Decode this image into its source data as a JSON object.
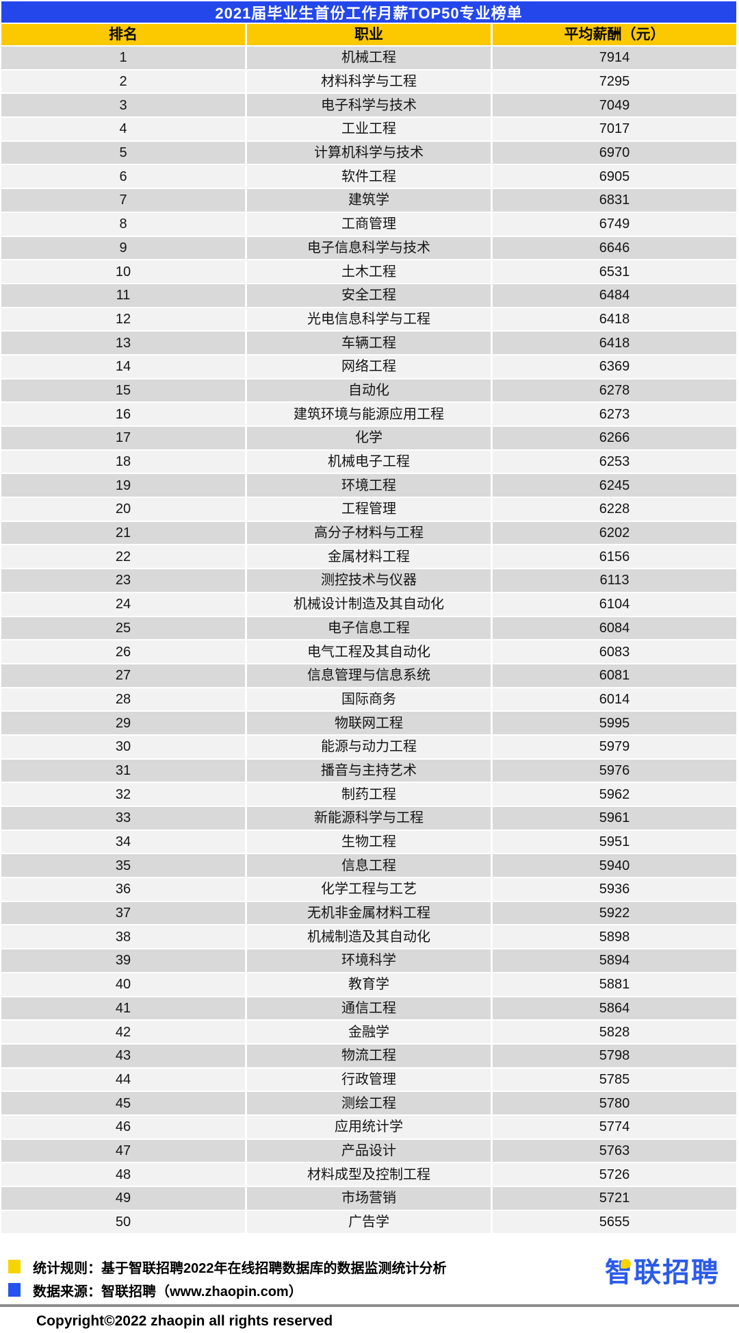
{
  "header": {
    "title": "2021届毕业生首份工作月薪TOP50专业榜单"
  },
  "chart_data": {
    "type": "table",
    "title": "2021届毕业生首份工作月薪TOP50专业榜单",
    "columns": [
      "排名",
      "职业",
      "平均薪酬（元）"
    ],
    "rows": [
      [
        1,
        "机械工程",
        7914
      ],
      [
        2,
        "材料科学与工程",
        7295
      ],
      [
        3,
        "电子科学与技术",
        7049
      ],
      [
        4,
        "工业工程",
        7017
      ],
      [
        5,
        "计算机科学与技术",
        6970
      ],
      [
        6,
        "软件工程",
        6905
      ],
      [
        7,
        "建筑学",
        6831
      ],
      [
        8,
        "工商管理",
        6749
      ],
      [
        9,
        "电子信息科学与技术",
        6646
      ],
      [
        10,
        "土木工程",
        6531
      ],
      [
        11,
        "安全工程",
        6484
      ],
      [
        12,
        "光电信息科学与工程",
        6418
      ],
      [
        13,
        "车辆工程",
        6418
      ],
      [
        14,
        "网络工程",
        6369
      ],
      [
        15,
        "自动化",
        6278
      ],
      [
        16,
        "建筑环境与能源应用工程",
        6273
      ],
      [
        17,
        "化学",
        6266
      ],
      [
        18,
        "机械电子工程",
        6253
      ],
      [
        19,
        "环境工程",
        6245
      ],
      [
        20,
        "工程管理",
        6228
      ],
      [
        21,
        "高分子材料与工程",
        6202
      ],
      [
        22,
        "金属材料工程",
        6156
      ],
      [
        23,
        "测控技术与仪器",
        6113
      ],
      [
        24,
        "机械设计制造及其自动化",
        6104
      ],
      [
        25,
        "电子信息工程",
        6084
      ],
      [
        26,
        "电气工程及其自动化",
        6083
      ],
      [
        27,
        "信息管理与信息系统",
        6081
      ],
      [
        28,
        "国际商务",
        6014
      ],
      [
        29,
        "物联网工程",
        5995
      ],
      [
        30,
        "能源与动力工程",
        5979
      ],
      [
        31,
        "播音与主持艺术",
        5976
      ],
      [
        32,
        "制药工程",
        5962
      ],
      [
        33,
        "新能源科学与工程",
        5961
      ],
      [
        34,
        "生物工程",
        5951
      ],
      [
        35,
        "信息工程",
        5940
      ],
      [
        36,
        "化学工程与工艺",
        5936
      ],
      [
        37,
        "无机非金属材料工程",
        5922
      ],
      [
        38,
        "机械制造及其自动化",
        5898
      ],
      [
        39,
        "环境科学",
        5894
      ],
      [
        40,
        "教育学",
        5881
      ],
      [
        41,
        "通信工程",
        5864
      ],
      [
        42,
        "金融学",
        5828
      ],
      [
        43,
        "物流工程",
        5798
      ],
      [
        44,
        "行政管理",
        5785
      ],
      [
        45,
        "测绘工程",
        5780
      ],
      [
        46,
        "应用统计学",
        5774
      ],
      [
        47,
        "产品设计",
        5763
      ],
      [
        48,
        "材料成型及控制工程",
        5726
      ],
      [
        49,
        "市场营销",
        5721
      ],
      [
        50,
        "广告学",
        5655
      ]
    ]
  },
  "footer": {
    "note1": "统计规则：基于智联招聘2022年在线招聘数据库的数据监测统计分析",
    "note2": "数据来源：智联招聘（www.zhaopin.com）",
    "logo_text": "智联招聘",
    "copyright": "Copyright©2022 zhaopin all rights reserved"
  },
  "colors": {
    "title_bar": "#2447EC",
    "header_bg": "#FCC800",
    "row_odd": "#D9D9D9",
    "row_even": "#F2F2F2",
    "accent_blue": "#2B5BE8",
    "bullet_yellow": "#F7D400",
    "bullet_blue": "#2553F0",
    "divider": "#8C8C8C"
  }
}
